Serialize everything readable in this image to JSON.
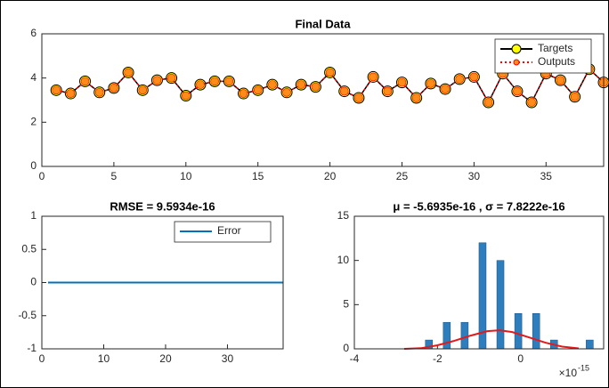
{
  "chart_data": [
    {
      "type": "line",
      "title": "Final Data",
      "xlim": [
        0,
        39
      ],
      "xticks": [
        0,
        5,
        10,
        15,
        20,
        25,
        30,
        35
      ],
      "ylim": [
        0,
        6
      ],
      "yticks": [
        0,
        2,
        4,
        6
      ],
      "legend": "upper right",
      "x": [
        1,
        2,
        3,
        4,
        5,
        6,
        7,
        8,
        9,
        10,
        11,
        12,
        13,
        14,
        15,
        16,
        17,
        18,
        19,
        20,
        21,
        22,
        23,
        24,
        25,
        26,
        27,
        28,
        29,
        30,
        31,
        32,
        33,
        34,
        35,
        36,
        37,
        38,
        39
      ],
      "series": [
        {
          "name": "Targets",
          "color": "#000000",
          "marker_color": "#ffff00",
          "line_style": "solid",
          "values": [
            3.45,
            3.3,
            3.85,
            3.35,
            3.55,
            4.25,
            3.45,
            3.9,
            4.0,
            3.2,
            3.7,
            3.85,
            3.85,
            3.3,
            3.45,
            3.7,
            3.35,
            3.7,
            3.6,
            4.25,
            3.4,
            3.1,
            4.05,
            3.4,
            3.8,
            3.1,
            3.75,
            3.5,
            3.95,
            4.05,
            2.9,
            4.2,
            3.4,
            2.9,
            4.2,
            3.9,
            3.15,
            4.4,
            3.8
          ]
        },
        {
          "name": "Outputs",
          "color": "#ff0000",
          "marker_color": "#ff8c1a",
          "line_style": "dotted",
          "values": [
            3.45,
            3.3,
            3.85,
            3.35,
            3.55,
            4.25,
            3.45,
            3.9,
            4.0,
            3.2,
            3.7,
            3.85,
            3.85,
            3.3,
            3.45,
            3.7,
            3.35,
            3.7,
            3.6,
            4.25,
            3.4,
            3.1,
            4.05,
            3.4,
            3.8,
            3.1,
            3.75,
            3.5,
            3.95,
            4.05,
            2.9,
            4.2,
            3.4,
            2.9,
            4.2,
            3.9,
            3.15,
            4.4,
            3.8
          ]
        }
      ]
    },
    {
      "type": "line",
      "title": "RMSE = 9.5934e-16",
      "xlim": [
        0,
        39
      ],
      "xticks": [
        0,
        10,
        20,
        30
      ],
      "ylim": [
        -1,
        1
      ],
      "yticks": [
        -1,
        -0.5,
        0,
        0.5,
        1
      ],
      "legend": "upper right",
      "x": [
        1,
        2,
        3,
        4,
        5,
        6,
        7,
        8,
        9,
        10,
        11,
        12,
        13,
        14,
        15,
        16,
        17,
        18,
        19,
        20,
        21,
        22,
        23,
        24,
        25,
        26,
        27,
        28,
        29,
        30,
        31,
        32,
        33,
        34,
        35,
        36,
        37,
        38,
        39
      ],
      "series": [
        {
          "name": "Error",
          "color": "#0072bd",
          "line_style": "solid",
          "values": [
            0,
            0,
            0,
            0,
            0,
            0,
            0,
            0,
            0,
            0,
            0,
            0,
            0,
            0,
            0,
            0,
            0,
            0,
            0,
            0,
            0,
            0,
            0,
            0,
            0,
            0,
            0,
            0,
            0,
            0,
            0,
            0,
            0,
            0,
            0,
            0,
            0,
            0,
            0
          ]
        }
      ]
    },
    {
      "type": "histogram",
      "title": "μ = -5.6935e-16 , σ = 7.8222e-16",
      "xlim": [
        -4,
        2
      ],
      "xticks": [
        -4,
        -2,
        0
      ],
      "x_scale_label": "×10",
      "x_scale_exponent": "-15",
      "ylim": [
        0,
        15
      ],
      "yticks": [
        0,
        5,
        10,
        15
      ],
      "color": "#2e7dbd",
      "bins": [
        -2.42,
        -1.99,
        -1.56,
        -1.13,
        -0.7,
        -0.27,
        0.16,
        0.59,
        1.02,
        1.45,
        1.88
      ],
      "counts": [
        1,
        3,
        3,
        12,
        10,
        4,
        4,
        1,
        0,
        1
      ],
      "curve": {
        "color": "#e31a1c",
        "x": [
          -2.8,
          -2.4,
          -2.0,
          -1.6,
          -1.2,
          -0.8,
          -0.5,
          -0.2,
          0.2,
          0.6,
          1.0,
          1.4
        ],
        "y": [
          0,
          0.07,
          0.4,
          0.9,
          1.5,
          2.0,
          2.1,
          1.9,
          1.3,
          0.7,
          0.25,
          0.05
        ]
      }
    }
  ]
}
